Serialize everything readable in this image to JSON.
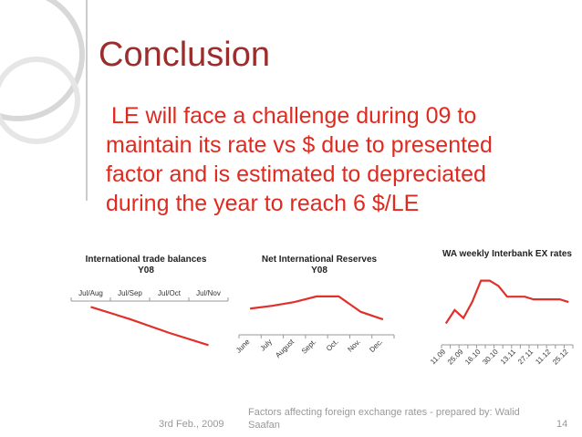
{
  "slide": {
    "title": "Conclusion",
    "body": [
      "LE will face a challenge during 09 to",
      "maintain its rate vs $ due to presented",
      "factor and is estimated to depreciated",
      "during the year to reach 6 $/LE"
    ],
    "date": "3rd Feb., 2009",
    "footer": [
      "Factors affecting foreign exchange rates - prepared by: Walid",
      "Saafan"
    ],
    "page": "14"
  },
  "chart_data": [
    {
      "type": "line",
      "title": [
        "International trade balances",
        "Y08"
      ],
      "categories": [
        "Jul/Aug",
        "Jul/Sep",
        "Jul/Oct",
        "Jul/Nov"
      ],
      "values": [
        -0.8,
        -1.6,
        -2.5,
        -3.3
      ],
      "color": "#e0302a",
      "ylim": [
        -4,
        0
      ]
    },
    {
      "type": "line",
      "title": [
        "Net International Reserves",
        "Y08"
      ],
      "categories": [
        "June",
        "July",
        "August",
        "Sept.",
        "Oct.",
        "Nov.",
        "Dec."
      ],
      "values": [
        30.6,
        31.2,
        32.0,
        33.2,
        33.2,
        29.9,
        28.3
      ],
      "color": "#e0302a",
      "ylim": [
        25,
        40
      ]
    },
    {
      "type": "line",
      "title": [
        "WA  weekly Interbank EX rates"
      ],
      "categories": [
        "11.09",
        null,
        "25.09",
        null,
        "16.10",
        null,
        "30.10",
        null,
        "13.11",
        null,
        "27.11",
        null,
        "11.12",
        null,
        "25.12"
      ],
      "values": [
        5.43,
        5.48,
        5.45,
        5.51,
        5.59,
        5.59,
        5.57,
        5.53,
        5.53,
        5.53,
        5.52,
        5.52,
        5.52,
        5.52,
        5.51
      ],
      "color": "#e0302a",
      "ylim": [
        5.35,
        5.65
      ]
    }
  ]
}
